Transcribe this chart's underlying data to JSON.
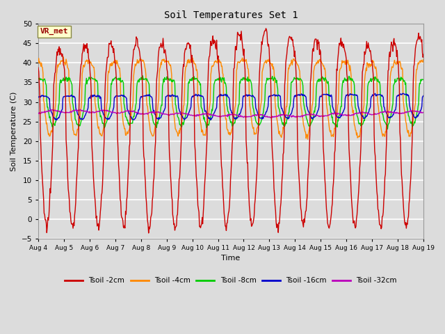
{
  "title": "Soil Temperatures Set 1",
  "xlabel": "Time",
  "ylabel": "Soil Temperature (C)",
  "ylim": [
    -5,
    50
  ],
  "yticks": [
    -5,
    0,
    5,
    10,
    15,
    20,
    25,
    30,
    35,
    40,
    45,
    50
  ],
  "x_labels": [
    "Aug 4",
    "Aug 5",
    "Aug 6",
    "Aug 7",
    "Aug 8",
    "Aug 9",
    "Aug 10",
    "Aug 11",
    "Aug 12",
    "Aug 13",
    "Aug 14",
    "Aug 15",
    "Aug 16",
    "Aug 17",
    "Aug 18",
    "Aug 19"
  ],
  "background_color": "#dcdcdc",
  "plot_bg_color": "#dcdcdc",
  "grid_color": "#ffffff",
  "legend_label": "VR_met",
  "series_colors": {
    "Tsoil -2cm": "#cc0000",
    "Tsoil -4cm": "#ff8800",
    "Tsoil -8cm": "#00cc00",
    "Tsoil -16cm": "#0000cc",
    "Tsoil -32cm": "#bb00bb"
  },
  "linewidth": 1.0,
  "n_days": 15,
  "hours_per_day": 48
}
